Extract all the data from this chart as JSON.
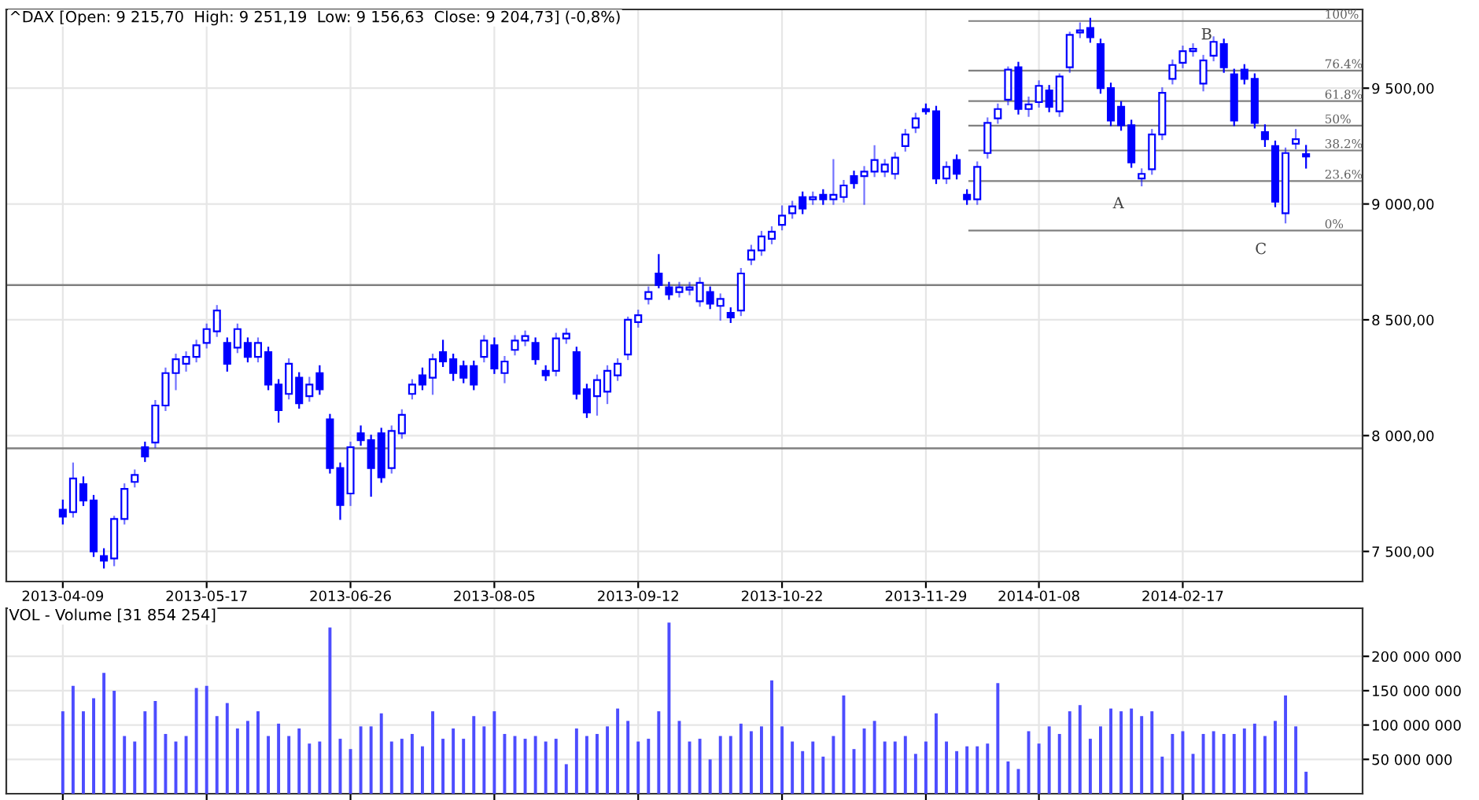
{
  "chart_data": [
    {
      "type": "candlestick",
      "title": "^DAX [Open: 9 215,70  High: 9 251,19  Low: 9 156,63  Close: 9 204,73] (-0,8%)",
      "color": "#0000ff",
      "grid": true,
      "categories": [
        "2013-04-09",
        null,
        null,
        null,
        null,
        null,
        null,
        null,
        null,
        null,
        null,
        null,
        null,
        null,
        "2013-05-17",
        null,
        null,
        null,
        null,
        null,
        null,
        null,
        null,
        null,
        null,
        null,
        null,
        null,
        "2013-06-26",
        null,
        null,
        null,
        null,
        null,
        null,
        null,
        null,
        null,
        null,
        null,
        null,
        null,
        "2013-08-05",
        null,
        null,
        null,
        null,
        null,
        null,
        null,
        null,
        null,
        null,
        null,
        null,
        null,
        "2013-09-12",
        null,
        null,
        null,
        null,
        null,
        null,
        null,
        null,
        null,
        null,
        null,
        null,
        null,
        "2013-10-22",
        null,
        null,
        null,
        null,
        null,
        null,
        null,
        null,
        null,
        null,
        null,
        null,
        null,
        "2013-11-29",
        null,
        null,
        null,
        null,
        null,
        null,
        null,
        null,
        null,
        null,
        "2014-01-08",
        null,
        null,
        null,
        null,
        null,
        null,
        null,
        null,
        null,
        null,
        null,
        null,
        null,
        "2014-02-17",
        null,
        null,
        null,
        null,
        null,
        null,
        null,
        null,
        null,
        null,
        null,
        null
      ],
      "ohlc": [
        [
          7680,
          7720,
          7620,
          7650
        ],
        [
          7670,
          7880,
          7650,
          7815
        ],
        [
          7790,
          7820,
          7700,
          7720
        ],
        [
          7720,
          7740,
          7480,
          7500
        ],
        [
          7480,
          7510,
          7430,
          7460
        ],
        [
          7470,
          7650,
          7440,
          7640
        ],
        [
          7640,
          7790,
          7620,
          7770
        ],
        [
          7800,
          7850,
          7780,
          7830
        ],
        [
          7950,
          7970,
          7890,
          7910
        ],
        [
          7970,
          8150,
          7950,
          8130
        ],
        [
          8130,
          8290,
          8110,
          8270
        ],
        [
          8270,
          8350,
          8200,
          8330
        ],
        [
          8310,
          8360,
          8280,
          8340
        ],
        [
          8340,
          8410,
          8320,
          8390
        ],
        [
          8400,
          8480,
          8380,
          8460
        ],
        [
          8450,
          8560,
          8430,
          8540
        ],
        [
          8400,
          8420,
          8280,
          8310
        ],
        [
          8380,
          8480,
          8360,
          8460
        ],
        [
          8400,
          8420,
          8320,
          8340
        ],
        [
          8340,
          8420,
          8320,
          8400
        ],
        [
          8360,
          8380,
          8200,
          8220
        ],
        [
          8220,
          8240,
          8060,
          8110
        ],
        [
          8180,
          8330,
          8160,
          8310
        ],
        [
          8250,
          8270,
          8120,
          8140
        ],
        [
          8170,
          8250,
          8150,
          8220
        ],
        [
          8270,
          8300,
          8180,
          8200
        ],
        [
          8070,
          8090,
          7840,
          7860
        ],
        [
          7860,
          7880,
          7640,
          7700
        ],
        [
          7750,
          7970,
          7700,
          7950
        ],
        [
          8010,
          8040,
          7960,
          7980
        ],
        [
          7980,
          8000,
          7740,
          7860
        ],
        [
          8010,
          8030,
          7800,
          7820
        ],
        [
          7860,
          8040,
          7840,
          8020
        ],
        [
          8010,
          8110,
          7990,
          8090
        ],
        [
          8180,
          8240,
          8160,
          8220
        ],
        [
          8260,
          8290,
          8200,
          8220
        ],
        [
          8250,
          8350,
          8180,
          8330
        ],
        [
          8360,
          8410,
          8300,
          8320
        ],
        [
          8330,
          8350,
          8240,
          8270
        ],
        [
          8300,
          8320,
          8230,
          8250
        ],
        [
          8300,
          8320,
          8200,
          8220
        ],
        [
          8340,
          8430,
          8320,
          8410
        ],
        [
          8390,
          8420,
          8270,
          8290
        ],
        [
          8270,
          8340,
          8230,
          8320
        ],
        [
          8370,
          8430,
          8350,
          8410
        ],
        [
          8410,
          8450,
          8390,
          8430
        ],
        [
          8400,
          8420,
          8310,
          8330
        ],
        [
          8280,
          8300,
          8240,
          8260
        ],
        [
          8280,
          8440,
          8260,
          8420
        ],
        [
          8420,
          8460,
          8400,
          8440
        ],
        [
          8360,
          8380,
          8160,
          8180
        ],
        [
          8200,
          8220,
          8080,
          8100
        ],
        [
          8170,
          8260,
          8090,
          8240
        ],
        [
          8190,
          8300,
          8140,
          8280
        ],
        [
          8260,
          8330,
          8240,
          8310
        ],
        [
          8350,
          8510,
          8330,
          8500
        ],
        [
          8490,
          8540,
          8470,
          8520
        ],
        [
          8590,
          8640,
          8570,
          8620
        ],
        [
          8700,
          8780,
          8640,
          8650
        ],
        [
          8640,
          8660,
          8590,
          8610
        ],
        [
          8620,
          8660,
          8600,
          8640
        ],
        [
          8630,
          8660,
          8610,
          8640
        ],
        [
          8580,
          8680,
          8560,
          8660
        ],
        [
          8620,
          8640,
          8550,
          8570
        ],
        [
          8560,
          8610,
          8500,
          8590
        ],
        [
          8530,
          8550,
          8490,
          8510
        ],
        [
          8540,
          8720,
          8520,
          8700
        ],
        [
          8760,
          8820,
          8740,
          8800
        ],
        [
          8800,
          8880,
          8780,
          8860
        ],
        [
          8850,
          8900,
          8830,
          8880
        ],
        [
          8910,
          8990,
          8890,
          8950
        ],
        [
          8960,
          9010,
          8940,
          8990
        ],
        [
          9030,
          9050,
          8960,
          8980
        ],
        [
          9020,
          9050,
          9000,
          9030
        ],
        [
          9040,
          9060,
          9000,
          9020
        ],
        [
          9020,
          9190,
          9000,
          9040
        ],
        [
          9030,
          9100,
          9010,
          9080
        ],
        [
          9120,
          9140,
          9070,
          9090
        ],
        [
          9120,
          9160,
          9000,
          9140
        ],
        [
          9140,
          9250,
          9120,
          9190
        ],
        [
          9140,
          9190,
          9120,
          9170
        ],
        [
          9130,
          9220,
          9110,
          9200
        ],
        [
          9250,
          9320,
          9230,
          9300
        ],
        [
          9330,
          9390,
          9310,
          9370
        ],
        [
          9410,
          9430,
          9390,
          9400
        ],
        [
          9400,
          9420,
          9090,
          9110
        ],
        [
          9110,
          9180,
          9090,
          9160
        ],
        [
          9190,
          9210,
          9110,
          9130
        ],
        [
          9040,
          9060,
          9000,
          9020
        ],
        [
          9020,
          9180,
          9000,
          9160
        ],
        [
          9220,
          9370,
          9200,
          9350
        ],
        [
          9370,
          9430,
          9350,
          9410
        ],
        [
          9450,
          9590,
          9430,
          9580
        ],
        [
          9590,
          9610,
          9390,
          9410
        ],
        [
          9410,
          9460,
          9380,
          9430
        ],
        [
          9440,
          9530,
          9420,
          9510
        ],
        [
          9490,
          9510,
          9400,
          9420
        ],
        [
          9400,
          9560,
          9380,
          9550
        ],
        [
          9590,
          9740,
          9570,
          9730
        ],
        [
          9740,
          9780,
          9720,
          9750
        ],
        [
          9760,
          9800,
          9700,
          9720
        ],
        [
          9690,
          9710,
          9480,
          9500
        ],
        [
          9500,
          9520,
          9340,
          9360
        ],
        [
          9420,
          9440,
          9320,
          9340
        ],
        [
          9340,
          9360,
          9160,
          9180
        ],
        [
          9110,
          9150,
          9080,
          9130
        ],
        [
          9150,
          9320,
          9130,
          9300
        ],
        [
          9300,
          9500,
          9280,
          9480
        ],
        [
          9540,
          9620,
          9520,
          9600
        ],
        [
          9610,
          9680,
          9590,
          9660
        ],
        [
          9660,
          9690,
          9640,
          9670
        ],
        [
          9520,
          9640,
          9490,
          9620
        ],
        [
          9640,
          9720,
          9620,
          9700
        ],
        [
          9690,
          9710,
          9570,
          9590
        ],
        [
          9560,
          9580,
          9340,
          9360
        ],
        [
          9580,
          9600,
          9520,
          9540
        ],
        [
          9540,
          9560,
          9330,
          9350
        ],
        [
          9310,
          9340,
          9250,
          9280
        ],
        [
          9250,
          9270,
          8990,
          9010
        ],
        [
          8960,
          9240,
          8920,
          9220
        ],
        [
          9260,
          9320,
          9240,
          9280
        ],
        [
          9215.7,
          9251.19,
          9156.63,
          9204.73
        ]
      ],
      "ylim": [
        7370,
        9840
      ],
      "yticks": [
        {
          "value": 7500,
          "label": "7 500,00"
        },
        {
          "value": 8000,
          "label": "8 000,00"
        },
        {
          "value": 8500,
          "label": "8 500,00"
        },
        {
          "value": 9000,
          "label": "9 000,00"
        },
        {
          "value": 9500,
          "label": "9 500,00"
        }
      ],
      "ref_lines": [
        {
          "axis": "y",
          "value": 8650,
          "label": null,
          "color": "#808080"
        },
        {
          "axis": "y",
          "value": 7945,
          "label": null,
          "color": "#808080"
        },
        {
          "axis": "y",
          "value": 9790,
          "label": null,
          "color": "#808080"
        },
        {
          "axis": "y",
          "value": 9576,
          "label": null,
          "color": "#808080"
        },
        {
          "axis": "y",
          "value": 9444,
          "label": null,
          "color": "#808080"
        },
        {
          "axis": "y",
          "value": 9338,
          "label": null,
          "color": "#808080"
        },
        {
          "axis": "y",
          "value": 9231,
          "label": null,
          "color": "#808080"
        },
        {
          "axis": "y",
          "value": 9099,
          "label": null,
          "color": "#808080"
        },
        {
          "axis": "y",
          "value": 8885,
          "label": null,
          "color": "#808080"
        }
      ],
      "annotations": [
        {
          "text": "100%",
          "y": 9790
        },
        {
          "text": "76.4%",
          "y": 9576
        },
        {
          "text": "61.8%",
          "y": 9444
        },
        {
          "text": "50%",
          "y": 9338
        },
        {
          "text": "38.2%",
          "y": 9231
        },
        {
          "text": "23.6%",
          "y": 9099
        },
        {
          "text": "0%",
          "y": 8885
        },
        "A",
        "B",
        "C"
      ]
    },
    {
      "type": "bar",
      "title": "VOL - Volume [31 854 254]",
      "color": "#4d4dff",
      "grid": true,
      "tick_labels": "y",
      "categories": [
        null,
        null,
        null,
        null,
        null,
        null,
        null,
        null,
        null,
        null,
        null,
        null,
        null,
        null,
        null,
        null,
        null,
        null,
        null,
        null,
        null,
        null,
        null,
        null,
        null,
        null,
        null,
        null,
        null,
        null,
        null,
        null,
        null,
        null,
        null,
        null,
        null,
        null,
        null,
        null,
        null,
        null,
        null,
        null,
        null,
        null,
        null,
        null,
        null,
        null,
        null,
        null,
        null,
        null,
        null,
        null,
        null,
        null,
        null,
        null,
        null,
        null,
        null,
        null,
        null,
        null,
        null,
        null,
        null,
        null,
        null,
        null,
        null,
        null,
        null,
        null,
        null,
        null,
        null,
        null,
        null,
        null,
        null,
        null,
        null,
        null,
        null,
        null,
        null,
        null,
        null,
        null,
        null,
        null,
        null,
        null,
        null,
        null,
        null,
        null,
        null,
        null,
        null,
        null,
        null,
        null,
        null,
        null,
        null,
        null,
        null,
        null,
        null,
        null,
        null,
        null,
        null,
        null,
        null,
        null,
        null,
        null
      ],
      "values": [
        120000000,
        157000000,
        120000000,
        139000000,
        176000000,
        150000000,
        84000000,
        76000000,
        120000000,
        135000000,
        87000000,
        76000000,
        84000000,
        154000000,
        157000000,
        113000000,
        132000000,
        95000000,
        106000000,
        120000000,
        84000000,
        102000000,
        84000000,
        95000000,
        73000000,
        76000000,
        242000000,
        80000000,
        65000000,
        98000000,
        98000000,
        117000000,
        76000000,
        80000000,
        87000000,
        69000000,
        120000000,
        80000000,
        95000000,
        80000000,
        113000000,
        98000000,
        120000000,
        87000000,
        84000000,
        80000000,
        84000000,
        76000000,
        80000000,
        43000000,
        95000000,
        84000000,
        87000000,
        98000000,
        124000000,
        106000000,
        76000000,
        80000000,
        120000000,
        249000000,
        106000000,
        76000000,
        80000000,
        50000000,
        84000000,
        84000000,
        102000000,
        91000000,
        98000000,
        165000000,
        98000000,
        76000000,
        62000000,
        76000000,
        54000000,
        84000000,
        143000000,
        65000000,
        95000000,
        106000000,
        76000000,
        76000000,
        84000000,
        58000000,
        76000000,
        117000000,
        76000000,
        62000000,
        69000000,
        69000000,
        73000000,
        161000000,
        47000000,
        36000000,
        91000000,
        73000000,
        98000000,
        87000000,
        120000000,
        129000000,
        80000000,
        98000000,
        124000000,
        120000000,
        124000000,
        113000000,
        120000000,
        54000000,
        87000000,
        91000000,
        58000000,
        87000000,
        91000000,
        87000000,
        87000000,
        95000000,
        102000000,
        84000000,
        106000000,
        143000000,
        98000000,
        32000000
      ],
      "ylim": [
        0,
        270000000
      ],
      "yticks": [
        {
          "value": 50000000,
          "label": "50 000 000"
        },
        {
          "value": 100000000,
          "label": "100 000 000"
        },
        {
          "value": 150000000,
          "label": "150 000 000"
        },
        {
          "value": 200000000,
          "label": "200 000 000"
        }
      ]
    }
  ]
}
